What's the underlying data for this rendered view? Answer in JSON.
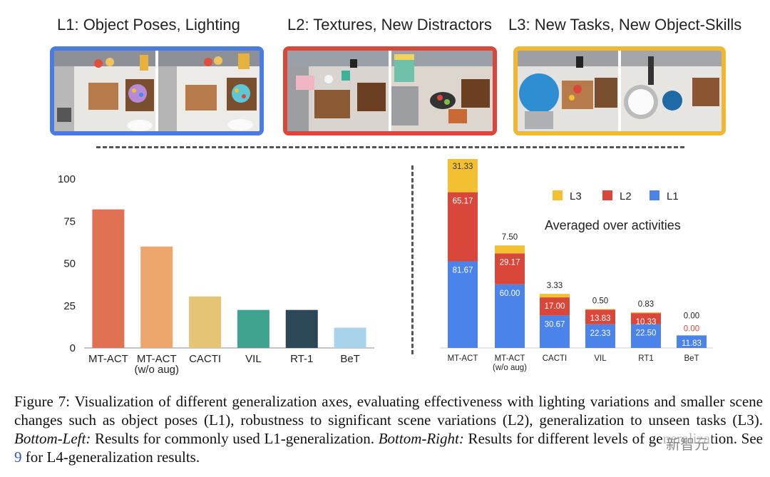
{
  "top": {
    "panels": [
      {
        "title": "L1: Object Poses, Lighting",
        "color": "#4a7be0"
      },
      {
        "title": "L2: Textures, New Distractors",
        "color": "#d9473b"
      },
      {
        "title": "L3: New Tasks, New Object-Skills",
        "color": "#f0b734"
      }
    ]
  },
  "chart_data": [
    {
      "type": "bar",
      "categories": [
        "MT-ACT",
        "MT-ACT\n(w/o aug)",
        "CACTI",
        "VIL",
        "RT-1",
        "BeT"
      ],
      "values": [
        82,
        60,
        30.5,
        22.5,
        22.5,
        12
      ],
      "colors": [
        "#e07153",
        "#eca66c",
        "#e6c475",
        "#3fa38f",
        "#2c4756",
        "#a8d3ea"
      ],
      "yticks": [
        0,
        25,
        50,
        75,
        100
      ],
      "ylim": [
        0,
        100
      ],
      "grid": false,
      "title": "",
      "xlabel": "",
      "ylabel": ""
    },
    {
      "type": "bar",
      "stacked": true,
      "categories": [
        "MT-ACT",
        "MT-ACT\n(w/o aug)",
        "CACTI",
        "VIL",
        "RT1",
        "BeT"
      ],
      "series": [
        {
          "name": "L1",
          "color": "#4a83ea",
          "values": [
            81.67,
            60.0,
            30.67,
            22.33,
            22.5,
            11.83
          ]
        },
        {
          "name": "L2",
          "color": "#d9473b",
          "values": [
            65.17,
            29.17,
            17.0,
            13.83,
            10.33,
            0.0
          ]
        },
        {
          "name": "L3",
          "color": "#f2c030",
          "values": [
            31.33,
            7.5,
            3.33,
            0.5,
            0.83,
            0.0
          ]
        }
      ],
      "labels": {
        "L1": [
          "81.67",
          "60.00",
          "30.67",
          "22.33",
          "22.50",
          "11.83"
        ],
        "L2": [
          "65.17",
          "29.17",
          "17.00",
          "13.83",
          "10.33",
          "0.00"
        ],
        "L3": [
          "31.33",
          "7.50",
          "3.33",
          "0.50",
          "0.83",
          "0.00"
        ]
      },
      "legend": [
        "L3",
        "L2",
        "L1"
      ],
      "legend_position": "top-right",
      "annotation": "Averaged over activities",
      "grid": false
    }
  ],
  "caption": {
    "figure_label": "Figure 7:",
    "text1": " Visualization of different generalization axes, evaluating effectiveness with lighting variations and smaller scene changes such as object poses (L1), robustness to significant scene variations (L2), generalization to unseen tasks (L3). ",
    "bottom_left": "Bottom-Left:",
    "text2": " Results for commonly used L1-generalization. ",
    "bottom_right": "Bottom-Right:",
    "text3": " Results for different levels of generalization. See ",
    "ref": "9",
    "text4": " for L4-generalization results."
  },
  "watermark": "新智元"
}
